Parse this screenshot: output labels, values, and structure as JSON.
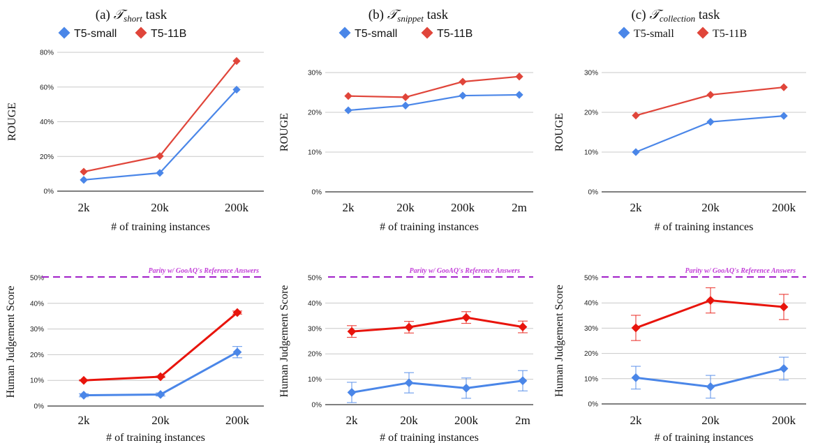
{
  "panel_titles": [
    {
      "prefix": "(a) ",
      "symbol": "𝒯",
      "subscript": "short",
      "suffix": " task"
    },
    {
      "prefix": "(b) ",
      "symbol": "𝒯",
      "subscript": "snippet",
      "suffix": " task"
    },
    {
      "prefix": "(c) ",
      "symbol": "𝒯",
      "subscript": "collection",
      "suffix": " task"
    }
  ],
  "colors": {
    "t5_small": "#4a86e8",
    "t5_11b": "#e0453a",
    "human_small": "#4a86e8",
    "human_11b": "#e8140c",
    "parity": "#a020c8",
    "grid": "#c8c8c8"
  },
  "chart_data": [
    {
      "type": "line",
      "panel": "a",
      "row": "rouge",
      "categories": [
        "2k",
        "20k",
        "200k"
      ],
      "ylabel": "ROUGE",
      "xlabel": "# of training instances",
      "ylim": [
        0,
        80
      ],
      "yticks": [
        "0%",
        "20%",
        "40%",
        "60%",
        "80%"
      ],
      "legend": [
        "T5-small",
        "T5-11B"
      ],
      "legend_font": "sans",
      "series": [
        {
          "name": "T5-small",
          "values": [
            6.5,
            10.5,
            58.5
          ]
        },
        {
          "name": "T5-11B",
          "values": [
            11.2,
            20.2,
            75
          ]
        }
      ]
    },
    {
      "type": "line",
      "panel": "b",
      "row": "rouge",
      "categories": [
        "2k",
        "20k",
        "200k",
        "2m"
      ],
      "ylabel": "ROUGE",
      "xlabel": "# of training instances",
      "ylim": [
        0,
        30
      ],
      "yticks": [
        "0%",
        "10%",
        "20%",
        "30%"
      ],
      "legend": [
        "T5-small",
        "T5-11B"
      ],
      "legend_font": "sans",
      "series": [
        {
          "name": "T5-small",
          "values": [
            20.5,
            21.7,
            24.2,
            24.4
          ]
        },
        {
          "name": "T5-11B",
          "values": [
            24.1,
            23.8,
            27.7,
            29
          ]
        }
      ]
    },
    {
      "type": "line",
      "panel": "c",
      "row": "rouge",
      "categories": [
        "2k",
        "20k",
        "200k"
      ],
      "ylabel": "ROUGE",
      "xlabel": "# of training instances",
      "ylim": [
        0,
        30
      ],
      "yticks": [
        "0%",
        "10%",
        "20%",
        "30%"
      ],
      "legend": [
        "T5-small",
        "T5-11B"
      ],
      "legend_font": "serif",
      "series": [
        {
          "name": "T5-small",
          "values": [
            10,
            17.6,
            19.1
          ]
        },
        {
          "name": "T5-11B",
          "values": [
            19.2,
            24.4,
            26.3
          ]
        }
      ]
    },
    {
      "type": "line",
      "panel": "a",
      "row": "human",
      "categories": [
        "2k",
        "20k",
        "200k"
      ],
      "ylabel": "Human Judgement Score",
      "xlabel": "# of training instances",
      "ylim": [
        0,
        50
      ],
      "yticks": [
        "0%",
        "10%",
        "20%",
        "30%",
        "40%",
        "50%"
      ],
      "parity_label": "Parity w/ GooAQ's Reference Answers",
      "series": [
        {
          "name": "T5-small",
          "values": [
            4.2,
            4.5,
            21
          ],
          "errors": [
            0.6,
            0.6,
            2.2
          ]
        },
        {
          "name": "T5-11B",
          "values": [
            10,
            11.4,
            36.4
          ],
          "errors": [
            0.2,
            0.3,
            0.6
          ]
        }
      ]
    },
    {
      "type": "line",
      "panel": "b",
      "row": "human",
      "categories": [
        "2k",
        "20k",
        "200k",
        "2m"
      ],
      "ylabel": "Human Judgement Score",
      "xlabel": "# of training instances",
      "ylim": [
        0,
        50
      ],
      "yticks": [
        "0%",
        "10%",
        "20%",
        "30%",
        "40%",
        "50%"
      ],
      "parity_label": "Parity w/ GooAQ's Reference Answers",
      "series": [
        {
          "name": "T5-small",
          "values": [
            4.8,
            8.6,
            6.5,
            9.4
          ],
          "errors": [
            4,
            4,
            4,
            4
          ]
        },
        {
          "name": "T5-11B",
          "values": [
            28.8,
            30.5,
            34.3,
            30.6
          ],
          "errors": [
            2.3,
            2.3,
            2.3,
            2.3
          ]
        }
      ]
    },
    {
      "type": "line",
      "panel": "c",
      "row": "human",
      "categories": [
        "2k",
        "20k",
        "200k"
      ],
      "ylabel": "Human Judgement Score",
      "xlabel": "# of training instances",
      "ylim": [
        0,
        50
      ],
      "yticks": [
        "0%",
        "10%",
        "20%",
        "30%",
        "40%",
        "50%"
      ],
      "parity_label": "Parity w/ GooAQ's Reference Answers",
      "series": [
        {
          "name": "T5-small",
          "values": [
            10.4,
            6.8,
            14
          ],
          "errors": [
            4.5,
            4.5,
            4.5
          ]
        },
        {
          "name": "T5-11B",
          "values": [
            30.1,
            41,
            38.4
          ],
          "errors": [
            5,
            5,
            5
          ]
        }
      ]
    }
  ]
}
